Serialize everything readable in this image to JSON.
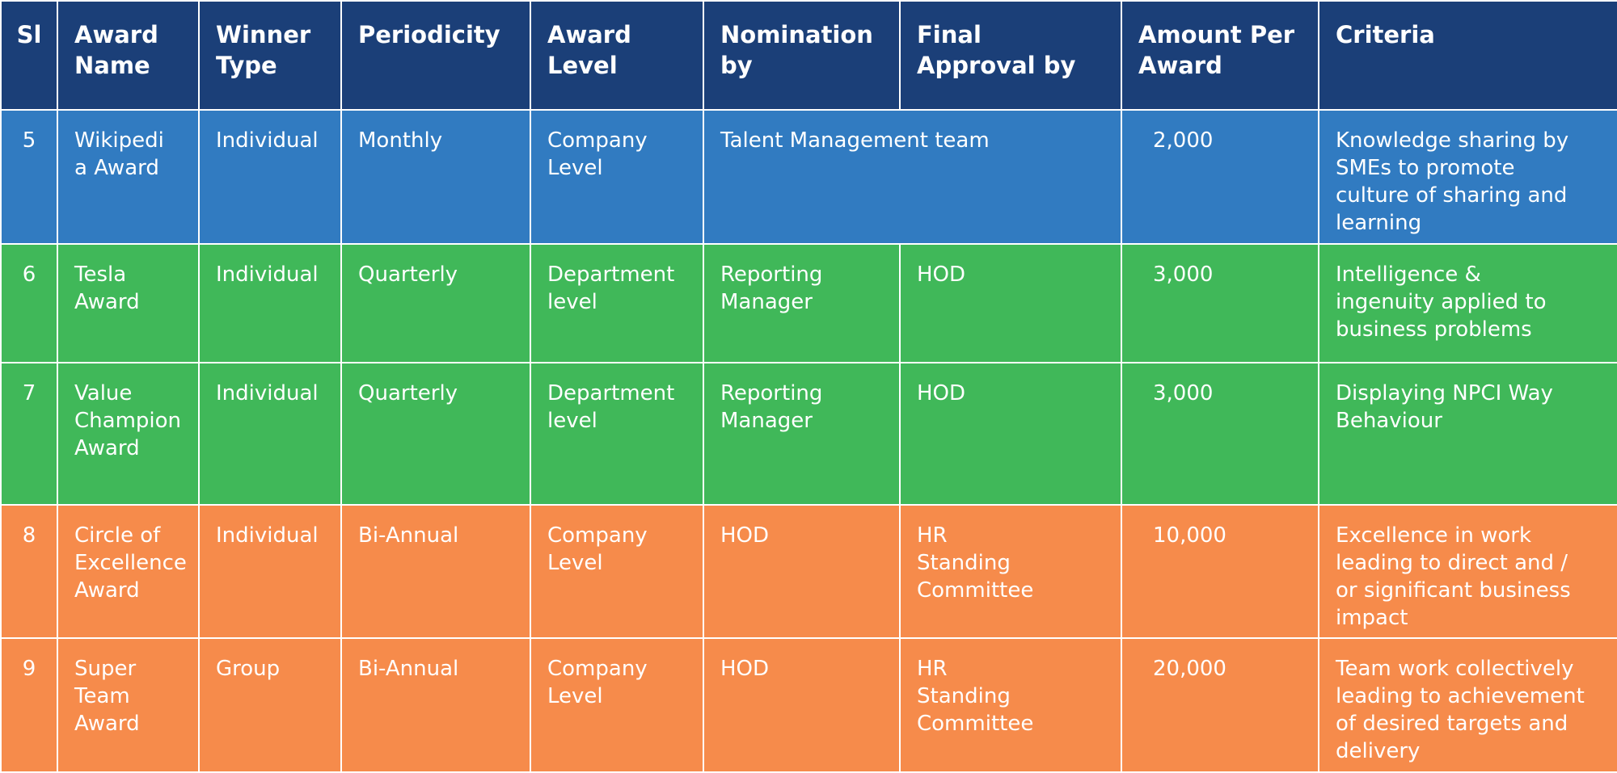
{
  "columns": [
    "Sl",
    "Award\nName",
    "Winner\nType",
    "Periodicity",
    "Award\nLevel",
    "Nomination\nby",
    "Final\nApproval by",
    "Amount Per\nAward",
    "Criteria"
  ],
  "rows": [
    {
      "sl": "5",
      "award_name": "Wikipedi\na Award",
      "winner_type": "Individual",
      "periodicity": "Monthly",
      "award_level": "Company\nLevel",
      "nomination_and_approval": "Talent Management team",
      "amount": "2,000",
      "criteria": "Knowledge sharing by\nSMEs to promote\nculture of sharing and\nlearning"
    },
    {
      "sl": "6",
      "award_name": "Tesla\nAward",
      "winner_type": "Individual",
      "periodicity": "Quarterly",
      "award_level": "Department\nlevel",
      "nomination_by": "Reporting\nManager",
      "final_approval_by": "HOD",
      "amount": "3,000",
      "criteria": "Intelligence &\ningenuity applied to\nbusiness problems"
    },
    {
      "sl": "7",
      "award_name": "Value\nChampion\nAward",
      "winner_type": "Individual",
      "periodicity": "Quarterly",
      "award_level": "Department\nlevel",
      "nomination_by": "Reporting\nManager",
      "final_approval_by": "HOD",
      "amount": "3,000",
      "criteria": "Displaying NPCI Way\nBehaviour"
    },
    {
      "sl": "8",
      "award_name": "Circle of\nExcellence\nAward",
      "winner_type": "Individual",
      "periodicity": "Bi-Annual",
      "award_level": "Company\nLevel",
      "nomination_by": "HOD",
      "final_approval_by": "HR\nStanding\nCommittee",
      "amount": "10,000",
      "criteria": "Excellence in work\nleading to direct and /\nor significant business\nimpact"
    },
    {
      "sl": "9",
      "award_name": "Super\nTeam\nAward",
      "winner_type": "Group",
      "periodicity": "Bi-Annual",
      "award_level": "Company\nLevel",
      "nomination_by": "HOD",
      "final_approval_by": "HR\nStanding\nCommittee",
      "amount": "20,000",
      "criteria": "Team work collectively\nleading to achievement\nof desired targets and\ndelivery"
    }
  ],
  "colors": {
    "header": "#1b3f78",
    "blue_band": "#317bc1",
    "green_band": "#40b859",
    "orange_band": "#f68b4b",
    "text": "#ffffff",
    "grid": "#ffffff"
  }
}
